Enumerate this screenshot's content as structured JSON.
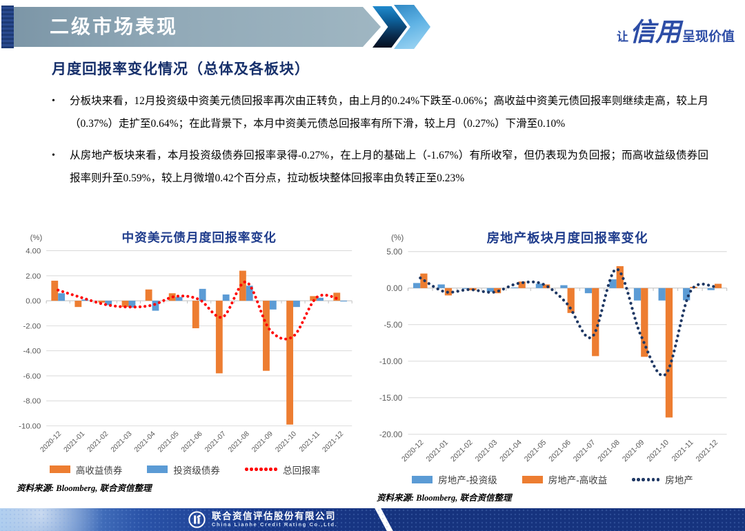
{
  "header": {
    "banner_title": "二级市场表现",
    "slogan_prefix": "让",
    "slogan_emphasis": "信用",
    "slogan_suffix": "呈现价值"
  },
  "page_title": "月度回报率变化情况（总体及各板块）",
  "bullet_marker": "•",
  "bullets": [
    "分板块来看，12月投资级中资美元债回报率再次由正转负，由上月的0.24%下跌至-0.06%；高收益中资美元债回报率则继续走高，较上月（0.37%）走扩至0.64%；在此背景下，本月中资美元债总回报率有所下滑，较上月（0.27%）下滑至0.10%",
    "从房地产板块来看，本月投资级债券回报率录得-0.27%，在上月的基础上（-1.67%）有所收窄，但仍表现为负回报；而高收益级债券回报率则升至0.59%，较上月微增0.42个百分点，拉动板块整体回报率由负转正至0.23%"
  ],
  "chart_data": [
    {
      "type": "bar",
      "subtype": "grouped bars + dotted line overlay",
      "title": "中资美元债月度回报率变化",
      "unit_label": "(%)",
      "ylim": [
        -10,
        4
      ],
      "ytick_step": 2,
      "grid": true,
      "legend_position": "bottom",
      "categories": [
        "2020-12",
        "2021-01",
        "2021-02",
        "2021-03",
        "2021-04",
        "2021-05",
        "2021-06",
        "2021-07",
        "2021-08",
        "2021-09",
        "2021-10",
        "2021-11",
        "2021-12"
      ],
      "series": [
        {
          "name": "高收益债券",
          "kind": "bar",
          "color": "#ED7D31",
          "values": [
            1.6,
            -0.5,
            -0.15,
            -0.5,
            0.9,
            0.6,
            -2.2,
            -5.8,
            2.4,
            -5.6,
            -9.9,
            0.37,
            0.64
          ]
        },
        {
          "name": "投资级债券",
          "kind": "bar",
          "color": "#5B9BD5",
          "values": [
            0.6,
            0.1,
            -0.35,
            -0.55,
            -0.8,
            0.3,
            0.95,
            0.5,
            1.2,
            -0.7,
            -0.5,
            0.24,
            -0.06
          ]
        },
        {
          "name": "总回报率",
          "kind": "line",
          "color": "#FF0000",
          "legend_dots": 7,
          "values": [
            0.85,
            0.25,
            -0.3,
            -0.5,
            -0.35,
            0.35,
            0.1,
            -1.3,
            1.5,
            -2.3,
            -2.85,
            0.27,
            0.1
          ]
        }
      ]
    },
    {
      "type": "bar",
      "subtype": "grouped bars + dotted line overlay",
      "title": "房地产板块月度回报率变化",
      "unit_label": "(%)",
      "ylim": [
        -20,
        5
      ],
      "ytick_step": 5,
      "grid": true,
      "legend_position": "bottom",
      "categories": [
        "2020-12",
        "2021-01",
        "2021-02",
        "2021-03",
        "2021-04",
        "2021-05",
        "2021-06",
        "2021-07",
        "2021-08",
        "2021-09",
        "2021-10",
        "2021-11",
        "2021-12"
      ],
      "series": [
        {
          "name": "房地产-投资级",
          "kind": "bar",
          "color": "#5B9BD5",
          "values": [
            0.7,
            0.5,
            -0.1,
            -0.5,
            0.1,
            0.6,
            0.4,
            -0.7,
            1.2,
            -1.7,
            -1.7,
            -1.67,
            -0.27
          ]
        },
        {
          "name": "房地产-高收益",
          "kind": "bar",
          "color": "#ED7D31",
          "values": [
            2.0,
            -1.0,
            -0.3,
            -0.7,
            0.9,
            0.5,
            -3.4,
            -9.3,
            3.0,
            -9.4,
            -17.7,
            0.17,
            0.59
          ]
        },
        {
          "name": "房地产",
          "kind": "line",
          "color": "#1F3864",
          "legend_dots": 6,
          "values": [
            1.4,
            -0.5,
            -0.2,
            -0.55,
            0.65,
            0.55,
            -2.2,
            -6.7,
            2.6,
            -6.5,
            -11.8,
            -0.55,
            0.23
          ]
        }
      ]
    }
  ],
  "sources": [
    "资料来源: Bloomberg, 联合资信整理",
    "资料来源: Bloomberg, 联合资信整理"
  ],
  "footer": {
    "company_cn": "联合资信评估股份有限公司",
    "company_en": "China Lianhe Credit Rating Co.,Ltd."
  },
  "colors": {
    "high_yield_bar": "#ED7D31",
    "investment_grade_bar": "#5B9BD5",
    "total_return_line": "#FF0000",
    "real_estate_line": "#1F3864",
    "banner_gray_blue": "#92AAB8",
    "title_navy": "#17306B",
    "chart_title_blue": "#1F3C8C",
    "slogan_blue": "#2D4DA6",
    "footer_navy": "#16337E"
  }
}
